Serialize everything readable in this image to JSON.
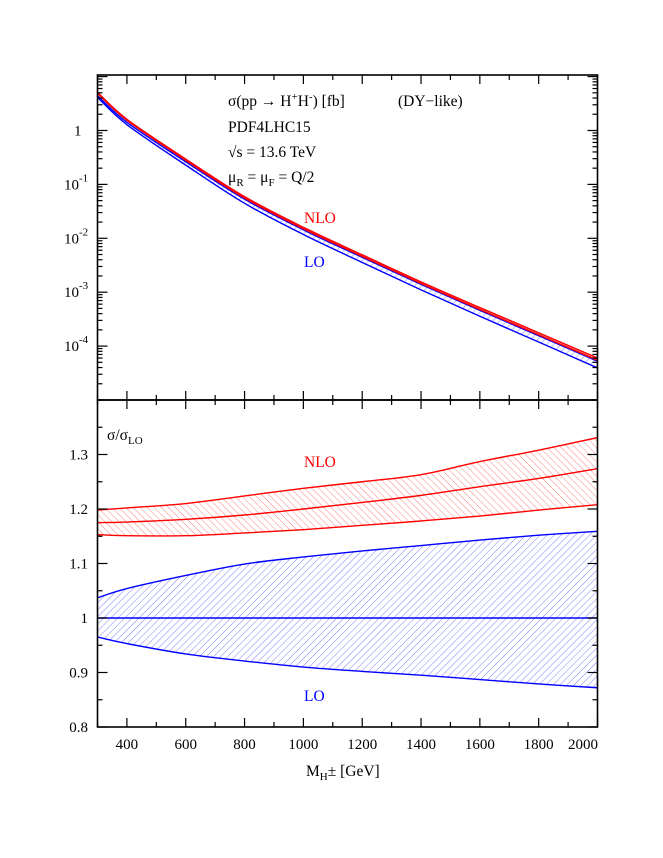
{
  "chart_data": [
    {
      "type": "line",
      "panel": "top",
      "title": "",
      "annotations": {
        "process_prefix": "σ(pp → H",
        "process_sup1": "+",
        "process_mid": "H",
        "process_sup2": "-",
        "process_suffix": ") [fb]",
        "tag": "(DY−like)",
        "pdf": "PDF4LHC15",
        "energy_sqrt": "√s = 13.6 TeV",
        "scale_mu1": "μ",
        "scale_sub1": "R",
        "scale_mid": " = μ",
        "scale_sub2": "F",
        "scale_suffix": " = Q/2"
      },
      "series_labels": {
        "nlo": "NLO",
        "lo": "LO"
      },
      "y_scale": "log",
      "ylim": [
        1e-05,
        10.7
      ],
      "y_ticks": [
        {
          "value": 1,
          "base": "1",
          "exp": ""
        },
        {
          "value": 0.1,
          "base": "10",
          "exp": "-1"
        },
        {
          "value": 0.01,
          "base": "10",
          "exp": "-2"
        },
        {
          "value": 0.001,
          "base": "10",
          "exp": "-3"
        },
        {
          "value": 0.0001,
          "base": "10",
          "exp": "-4"
        }
      ],
      "x": [
        300,
        400,
        600,
        800,
        1000,
        1200,
        1400,
        1600,
        1800,
        2000
      ],
      "nlo_central": [
        5.01,
        1.58,
        0.288,
        0.0575,
        0.0155,
        0.00479,
        0.00151,
        0.0005,
        0.00017,
        5.75e-05
      ],
      "note": ""
    },
    {
      "type": "area",
      "panel": "bottom",
      "ylabel_main": "σ/σ",
      "ylabel_sub": "LO",
      "xlabel_main": "M",
      "xlabel_sub": "H",
      "xlabel_suffix": "± [GeV]",
      "xlim": [
        300,
        2000
      ],
      "ylim": [
        0.8,
        1.4
      ],
      "x_ticks": [
        400,
        600,
        800,
        1000,
        1200,
        1400,
        1600,
        1800,
        2000
      ],
      "y_ticks": [
        "0.8",
        "0.9",
        "1",
        "1.1",
        "1.2",
        "1.3"
      ],
      "series_labels": {
        "nlo": "NLO",
        "lo": "LO"
      },
      "x": [
        300,
        400,
        600,
        800,
        1000,
        1200,
        1400,
        1600,
        1800,
        2000
      ],
      "series": [
        {
          "name": "NLO",
          "upper": [
            1.198,
            1.202,
            1.21,
            1.224,
            1.238,
            1.25,
            1.263,
            1.287,
            1.308,
            1.331
          ],
          "central": [
            1.175,
            1.176,
            1.181,
            1.189,
            1.2,
            1.212,
            1.225,
            1.241,
            1.256,
            1.274
          ],
          "lower": [
            1.153,
            1.151,
            1.151,
            1.156,
            1.162,
            1.17,
            1.178,
            1.187,
            1.198,
            1.208
          ]
        },
        {
          "name": "LO",
          "upper": [
            1.037,
            1.054,
            1.078,
            1.099,
            1.112,
            1.123,
            1.133,
            1.143,
            1.152,
            1.159
          ],
          "central": [
            1,
            1,
            1,
            1,
            1,
            1,
            1,
            1,
            1,
            1
          ],
          "lower": [
            0.965,
            0.953,
            0.934,
            0.921,
            0.91,
            0.902,
            0.895,
            0.887,
            0.879,
            0.872
          ]
        }
      ],
      "colors": {
        "nlo": "#ff0000",
        "lo": "#0000ff"
      }
    }
  ]
}
